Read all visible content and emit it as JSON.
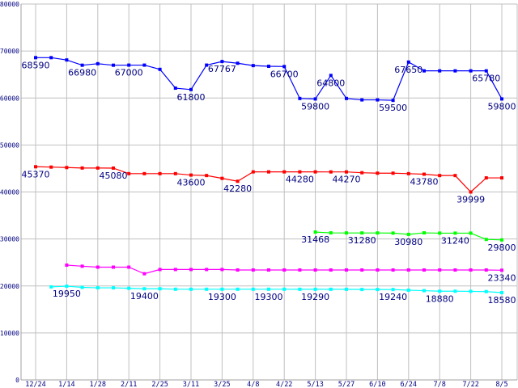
{
  "chart_data": {
    "type": "line",
    "title": "",
    "xlabel": "",
    "ylabel": "",
    "ylim": [
      0,
      80000
    ],
    "yticks": [
      "0",
      "10000",
      "20000",
      "30000",
      "40000",
      "50000",
      "60000",
      "70000",
      "80000"
    ],
    "grid": true,
    "point_count": 31,
    "xticks": [
      {
        "i": 0,
        "label": "12/24"
      },
      {
        "i": 2,
        "label": "1/14"
      },
      {
        "i": 4,
        "label": "1/28"
      },
      {
        "i": 6,
        "label": "2/11"
      },
      {
        "i": 8,
        "label": "2/25"
      },
      {
        "i": 10,
        "label": "3/11"
      },
      {
        "i": 12,
        "label": "3/25"
      },
      {
        "i": 14,
        "label": "4/8"
      },
      {
        "i": 16,
        "label": "4/22"
      },
      {
        "i": 18,
        "label": "5/13"
      },
      {
        "i": 20,
        "label": "5/27"
      },
      {
        "i": 22,
        "label": "6/10"
      },
      {
        "i": 24,
        "label": "6/24"
      },
      {
        "i": 26,
        "label": "7/8"
      },
      {
        "i": 28,
        "label": "7/22"
      },
      {
        "i": 30,
        "label": "8/5"
      }
    ],
    "series": [
      {
        "name": "blue",
        "color": "#0000FF",
        "values": [
          68590,
          68590,
          68100,
          66980,
          67300,
          66980,
          67000,
          67000,
          66100,
          62100,
          61800,
          67000,
          67767,
          67400,
          66900,
          66750,
          66700,
          59900,
          59800,
          64800,
          59900,
          59600,
          59600,
          59500,
          67650,
          65780,
          65780,
          65780,
          65780,
          65780,
          59800
        ],
        "labels": [
          {
            "i": 0,
            "text": "68590"
          },
          {
            "i": 3,
            "text": "66980"
          },
          {
            "i": 6,
            "text": "67000"
          },
          {
            "i": 10,
            "text": "61800"
          },
          {
            "i": 12,
            "text": "67767"
          },
          {
            "i": 16,
            "text": "66700"
          },
          {
            "i": 18,
            "text": "59800"
          },
          {
            "i": 19,
            "text": "64800"
          },
          {
            "i": 23,
            "text": "59500"
          },
          {
            "i": 24,
            "text": "67650"
          },
          {
            "i": 29,
            "text": "65780"
          },
          {
            "i": 30,
            "text": "59800"
          }
        ]
      },
      {
        "name": "red",
        "color": "#FF0000",
        "values": [
          45370,
          45300,
          45200,
          45100,
          45100,
          45080,
          43900,
          43900,
          43900,
          43900,
          43600,
          43500,
          42900,
          42280,
          44280,
          44280,
          44280,
          44280,
          44280,
          44270,
          44270,
          44100,
          44000,
          44000,
          43900,
          43780,
          43500,
          43500,
          39999,
          43000,
          43000
        ],
        "labels": [
          {
            "i": 0,
            "text": "45370"
          },
          {
            "i": 5,
            "text": "45080"
          },
          {
            "i": 10,
            "text": "43600"
          },
          {
            "i": 13,
            "text": "42280"
          },
          {
            "i": 17,
            "text": "44280"
          },
          {
            "i": 20,
            "text": "44270"
          },
          {
            "i": 25,
            "text": "43780"
          },
          {
            "i": 28,
            "text": "39999"
          }
        ]
      },
      {
        "name": "green",
        "color": "#00FF00",
        "values": [
          null,
          null,
          null,
          null,
          null,
          null,
          null,
          null,
          null,
          null,
          null,
          null,
          null,
          null,
          null,
          null,
          null,
          null,
          31468,
          31300,
          31280,
          31280,
          31280,
          31250,
          30980,
          31300,
          31240,
          31240,
          31240,
          29900,
          29800
        ],
        "labels": [
          {
            "i": 18,
            "text": "31468"
          },
          {
            "i": 21,
            "text": "31280"
          },
          {
            "i": 24,
            "text": "30980"
          },
          {
            "i": 27,
            "text": "31240"
          },
          {
            "i": 30,
            "text": "29800"
          }
        ]
      },
      {
        "name": "magenta",
        "color": "#FF00FF",
        "values": [
          null,
          null,
          24430,
          24200,
          24000,
          24000,
          24000,
          22600,
          23500,
          23500,
          23500,
          23500,
          23500,
          23400,
          23400,
          23400,
          23400,
          23400,
          23400,
          23400,
          23400,
          23400,
          23400,
          23400,
          23400,
          23400,
          23400,
          23400,
          23400,
          23400,
          23340
        ],
        "labels": [
          {
            "i": 30,
            "text": "23340"
          }
        ]
      },
      {
        "name": "cyan",
        "color": "#00FFFF",
        "values": [
          null,
          19800,
          19950,
          19700,
          19600,
          19600,
          19500,
          19400,
          19400,
          19300,
          19300,
          19300,
          19300,
          19300,
          19300,
          19300,
          19300,
          19290,
          19290,
          19290,
          19290,
          19250,
          19250,
          19240,
          19100,
          19000,
          18880,
          18880,
          18850,
          18800,
          18580
        ],
        "labels": [
          {
            "i": 2,
            "text": "19950"
          },
          {
            "i": 7,
            "text": "19400"
          },
          {
            "i": 12,
            "text": "19300"
          },
          {
            "i": 15,
            "text": "19300"
          },
          {
            "i": 18,
            "text": "19290"
          },
          {
            "i": 23,
            "text": "19240"
          },
          {
            "i": 26,
            "text": "18880"
          },
          {
            "i": 30,
            "text": "18580"
          }
        ]
      }
    ]
  }
}
